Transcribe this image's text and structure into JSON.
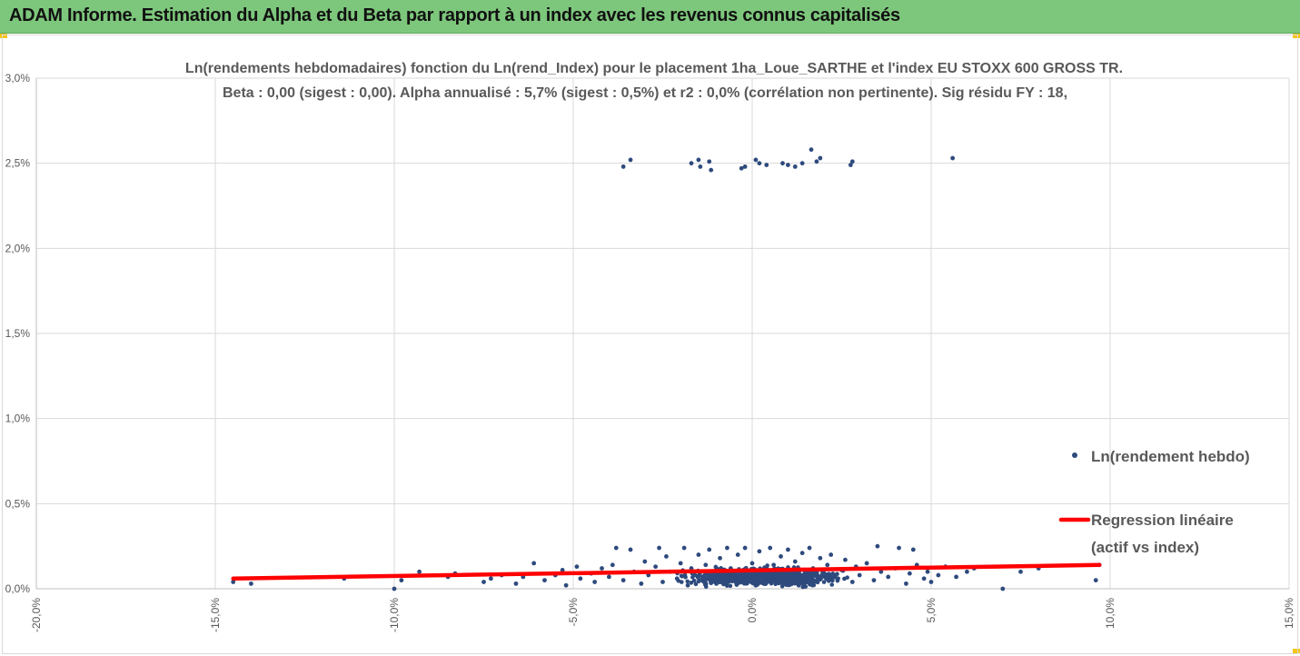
{
  "header": {
    "title": "ADAM Informe. Estimation du Alpha et du Beta par rapport à un index avec les revenus connus capitalisés"
  },
  "colors": {
    "header_background": "#7dc77c",
    "points": "#2e4a7d",
    "regression": "#ff0000",
    "corner_accent": "#f5c518"
  },
  "chart_data": {
    "type": "scatter",
    "title_line1": "Ln(rendements hebdomadaires) fonction du Ln(rend_Index) pour le placement 1ha_Loue_SARTHE et l'index EU STOXX 600 GROSS TR.",
    "title_line2": "Beta : 0,00 (sigest : 0,00). Alpha annualisé : 5,7% (sigest : 0,5%) et r2 : 0,0% (corrélation non pertinente). Sig résidu FY : 18,",
    "xlim": [
      -20,
      15
    ],
    "ylim": [
      0,
      3
    ],
    "grid": true,
    "x_ticks": [
      {
        "value": -20,
        "label": "-20,0%"
      },
      {
        "value": -15,
        "label": "-15,0%"
      },
      {
        "value": -10,
        "label": "-10,0%"
      },
      {
        "value": -5,
        "label": "-5,0%"
      },
      {
        "value": 0,
        "label": "0,0%"
      },
      {
        "value": 5,
        "label": "5,0%"
      },
      {
        "value": 10,
        "label": "10,0%"
      },
      {
        "value": 15,
        "label": "15,0%"
      }
    ],
    "y_ticks": [
      {
        "value": 0,
        "label": "0,0%"
      },
      {
        "value": 0.5,
        "label": "0,5%"
      },
      {
        "value": 1.0,
        "label": "1,0%"
      },
      {
        "value": 1.5,
        "label": "1,5%"
      },
      {
        "value": 2.0,
        "label": "2,0%"
      },
      {
        "value": 2.5,
        "label": "2,5%"
      },
      {
        "value": 3.0,
        "label": "3,0%"
      }
    ],
    "legend_position": "right",
    "series": [
      {
        "name": "Ln(rendement hebdo)",
        "legend_label": "Ln(rendement hebdo)",
        "type": "scatter",
        "points": [
          [
            -3.6,
            2.48
          ],
          [
            -3.4,
            2.52
          ],
          [
            -1.7,
            2.5
          ],
          [
            -1.5,
            2.52
          ],
          [
            -1.45,
            2.48
          ],
          [
            -1.2,
            2.51
          ],
          [
            -1.15,
            2.46
          ],
          [
            -0.3,
            2.47
          ],
          [
            -0.2,
            2.48
          ],
          [
            0.1,
            2.52
          ],
          [
            0.2,
            2.5
          ],
          [
            0.4,
            2.49
          ],
          [
            0.85,
            2.5
          ],
          [
            1.0,
            2.49
          ],
          [
            1.2,
            2.48
          ],
          [
            1.4,
            2.5
          ],
          [
            1.65,
            2.58
          ],
          [
            1.8,
            2.51
          ],
          [
            1.9,
            2.53
          ],
          [
            2.75,
            2.49
          ],
          [
            2.8,
            2.51
          ],
          [
            5.6,
            2.53
          ],
          [
            -14.5,
            0.04
          ],
          [
            -14.0,
            0.03
          ],
          [
            -11.4,
            0.06
          ],
          [
            -10.0,
            0.0
          ],
          [
            -9.8,
            0.05
          ],
          [
            -9.3,
            0.1
          ],
          [
            -8.5,
            0.07
          ],
          [
            -8.3,
            0.09
          ],
          [
            -7.5,
            0.04
          ],
          [
            -7.3,
            0.06
          ],
          [
            -7.0,
            0.08
          ],
          [
            -6.6,
            0.03
          ],
          [
            -6.4,
            0.07
          ],
          [
            -6.1,
            0.15
          ],
          [
            -5.8,
            0.05
          ],
          [
            -5.5,
            0.08
          ],
          [
            -5.3,
            0.11
          ],
          [
            -5.2,
            0.02
          ],
          [
            -4.9,
            0.13
          ],
          [
            -4.8,
            0.06
          ],
          [
            -4.5,
            0.09
          ],
          [
            -4.4,
            0.04
          ],
          [
            -4.2,
            0.12
          ],
          [
            -4.0,
            0.07
          ],
          [
            -3.9,
            0.14
          ],
          [
            -3.8,
            0.24
          ],
          [
            -3.6,
            0.05
          ],
          [
            -3.4,
            0.23
          ],
          [
            -3.3,
            0.1
          ],
          [
            -3.1,
            0.03
          ],
          [
            -3.0,
            0.16
          ],
          [
            -2.9,
            0.08
          ],
          [
            -2.7,
            0.13
          ],
          [
            -2.6,
            0.24
          ],
          [
            -2.5,
            0.04
          ],
          [
            -2.4,
            0.19
          ],
          [
            -2.3,
            0.1
          ],
          [
            -2.1,
            0.06
          ],
          [
            -2.0,
            0.15
          ],
          [
            -1.9,
            0.24
          ],
          [
            -1.8,
            0.02
          ],
          [
            -1.7,
            0.12
          ],
          [
            -1.6,
            0.08
          ],
          [
            -1.5,
            0.2
          ],
          [
            -1.4,
            0.05
          ],
          [
            -1.3,
            0.14
          ],
          [
            -1.2,
            0.23
          ],
          [
            -1.1,
            0.1
          ],
          [
            -1.0,
            0.03
          ],
          [
            -0.9,
            0.18
          ],
          [
            -0.8,
            0.07
          ],
          [
            -0.7,
            0.24
          ],
          [
            -0.6,
            0.12
          ],
          [
            -0.5,
            0.05
          ],
          [
            -0.4,
            0.2
          ],
          [
            -0.3,
            0.1
          ],
          [
            -0.2,
            0.24
          ],
          [
            -0.1,
            0.06
          ],
          [
            0.0,
            0.15
          ],
          [
            0.1,
            0.02
          ],
          [
            0.2,
            0.22
          ],
          [
            0.3,
            0.11
          ],
          [
            0.4,
            0.07
          ],
          [
            0.5,
            0.24
          ],
          [
            0.6,
            0.14
          ],
          [
            0.7,
            0.04
          ],
          [
            0.8,
            0.19
          ],
          [
            0.9,
            0.1
          ],
          [
            1.0,
            0.23
          ],
          [
            1.1,
            0.06
          ],
          [
            1.2,
            0.16
          ],
          [
            1.3,
            0.02
          ],
          [
            1.4,
            0.21
          ],
          [
            1.5,
            0.09
          ],
          [
            1.6,
            0.24
          ],
          [
            1.7,
            0.12
          ],
          [
            1.8,
            0.05
          ],
          [
            1.9,
            0.18
          ],
          [
            2.0,
            0.08
          ],
          [
            2.1,
            0.14
          ],
          [
            2.2,
            0.2
          ],
          [
            2.4,
            0.06
          ],
          [
            2.5,
            0.11
          ],
          [
            2.6,
            0.17
          ],
          [
            2.8,
            0.04
          ],
          [
            2.9,
            0.13
          ],
          [
            3.0,
            0.08
          ],
          [
            3.2,
            0.15
          ],
          [
            3.4,
            0.05
          ],
          [
            3.5,
            0.25
          ],
          [
            3.6,
            0.1
          ],
          [
            3.8,
            0.07
          ],
          [
            4.0,
            0.12
          ],
          [
            4.1,
            0.24
          ],
          [
            4.3,
            0.03
          ],
          [
            4.4,
            0.09
          ],
          [
            4.5,
            0.23
          ],
          [
            4.6,
            0.14
          ],
          [
            4.8,
            0.06
          ],
          [
            4.9,
            0.1
          ],
          [
            5.0,
            0.04
          ],
          [
            5.2,
            0.08
          ],
          [
            5.4,
            0.13
          ],
          [
            5.7,
            0.07
          ],
          [
            6.0,
            0.1
          ],
          [
            6.2,
            0.12
          ],
          [
            7.0,
            0.0
          ],
          [
            7.5,
            0.1
          ],
          [
            8.0,
            0.12
          ],
          [
            9.6,
            0.05
          ],
          [
            9.7,
            0.14
          ]
        ],
        "dense_cluster": {
          "x_center": 0.3,
          "x_spread": 1.8,
          "y_center": 0.07,
          "y_spread": 0.045,
          "count": 950
        }
      },
      {
        "name": "Regression linéaire (actif vs index)",
        "legend_label_line1": "Regression linéaire",
        "legend_label_line2": "(actif vs index)",
        "type": "line",
        "points": [
          [
            -14.5,
            0.06
          ],
          [
            9.7,
            0.14
          ]
        ]
      }
    ]
  }
}
